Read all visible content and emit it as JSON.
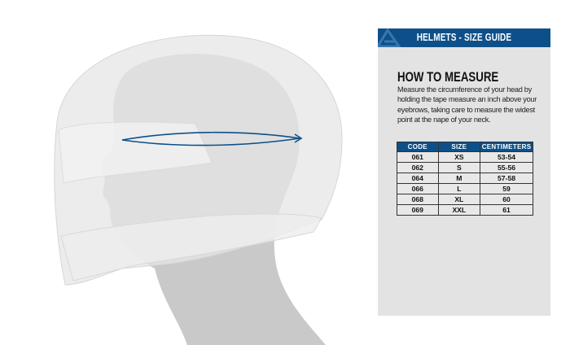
{
  "header": {
    "title": "HELMETS - SIZE GUIDE",
    "logo_icon": "brand-logo-icon",
    "color": "#0d5089"
  },
  "section": {
    "title": "HOW TO MEASURE",
    "description": "Measure the circumference of your head by holding the tape measure an inch above your eyebrows, taking care to measure the widest point at the nape of your neck."
  },
  "table": {
    "headers": [
      "CODE",
      "SIZE",
      "CENTIMETERS"
    ],
    "rows": [
      [
        "061",
        "XS",
        "53-54"
      ],
      [
        "062",
        "S",
        "55-56"
      ],
      [
        "064",
        "M",
        "57-58"
      ],
      [
        "066",
        "L",
        "59"
      ],
      [
        "068",
        "XL",
        "60"
      ],
      [
        "069",
        "XXL",
        "61"
      ]
    ]
  },
  "illustration": {
    "measure_line_color": "#0d5089"
  }
}
